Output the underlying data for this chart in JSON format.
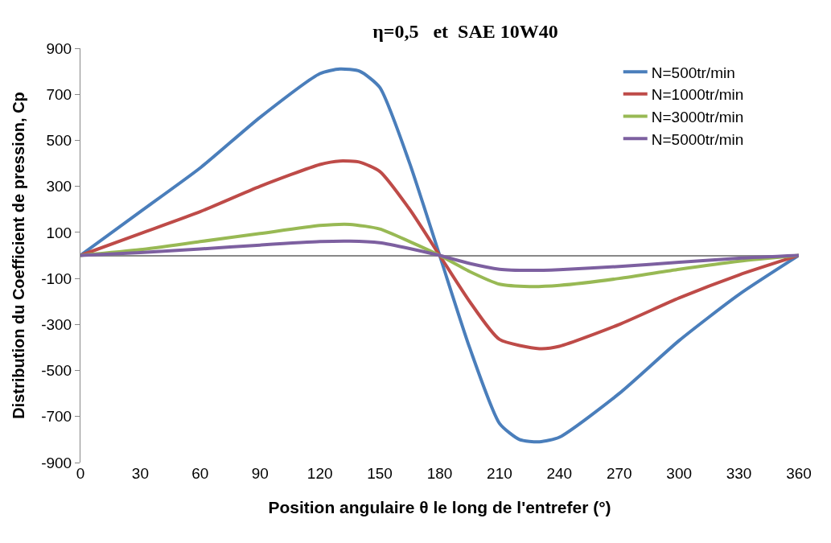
{
  "chart_data": {
    "type": "line",
    "title": "η=0,5   et  SAE 10W40",
    "xlabel": "Position angulaire θ le long de l'entrefer (°)",
    "ylabel": "Distribution du Coefficient de pression, Cp",
    "xlim": [
      0,
      360
    ],
    "xticks": [
      0,
      30,
      60,
      90,
      120,
      150,
      180,
      210,
      240,
      270,
      300,
      330,
      360
    ],
    "ylim": [
      -900,
      900
    ],
    "yticks": [
      -900,
      -700,
      -500,
      -300,
      -100,
      100,
      300,
      500,
      700,
      900
    ],
    "grid": false,
    "legend": "top right",
    "marker": "none",
    "line_style": "solid",
    "series": [
      {
        "name": "N=500tr/min",
        "color": "#4a7ebb",
        "x": [
          0,
          30,
          60,
          90,
          120,
          130,
          140,
          150,
          165,
          180,
          195,
          210,
          220,
          230,
          240,
          270,
          300,
          330,
          360
        ],
        "values": [
          0,
          190,
          380,
          600,
          790,
          810,
          800,
          730,
          400,
          0,
          -400,
          -730,
          -800,
          -810,
          -790,
          -600,
          -370,
          -170,
          0
        ]
      },
      {
        "name": "N=1000tr/min",
        "color": "#be4b48",
        "x": [
          0,
          30,
          60,
          90,
          120,
          130,
          140,
          150,
          165,
          180,
          195,
          210,
          230,
          240,
          270,
          300,
          330,
          360
        ],
        "values": [
          0,
          95,
          190,
          300,
          395,
          410,
          405,
          365,
          200,
          0,
          -200,
          -365,
          -405,
          -395,
          -300,
          -185,
          -85,
          0
        ]
      },
      {
        "name": "N=3000tr/min",
        "color": "#98b954",
        "x": [
          0,
          30,
          60,
          90,
          120,
          135,
          150,
          165,
          180,
          195,
          210,
          225,
          240,
          270,
          300,
          330,
          360
        ],
        "values": [
          0,
          25,
          60,
          95,
          130,
          135,
          115,
          60,
          0,
          -70,
          -125,
          -135,
          -130,
          -100,
          -60,
          -25,
          0
        ]
      },
      {
        "name": "N=5000tr/min",
        "color": "#7d60a0",
        "x": [
          0,
          30,
          60,
          90,
          120,
          135,
          150,
          165,
          180,
          195,
          210,
          225,
          240,
          270,
          300,
          330,
          360
        ],
        "values": [
          0,
          12,
          28,
          45,
          60,
          62,
          55,
          30,
          0,
          -35,
          -60,
          -65,
          -62,
          -48,
          -30,
          -12,
          0
        ]
      }
    ]
  }
}
